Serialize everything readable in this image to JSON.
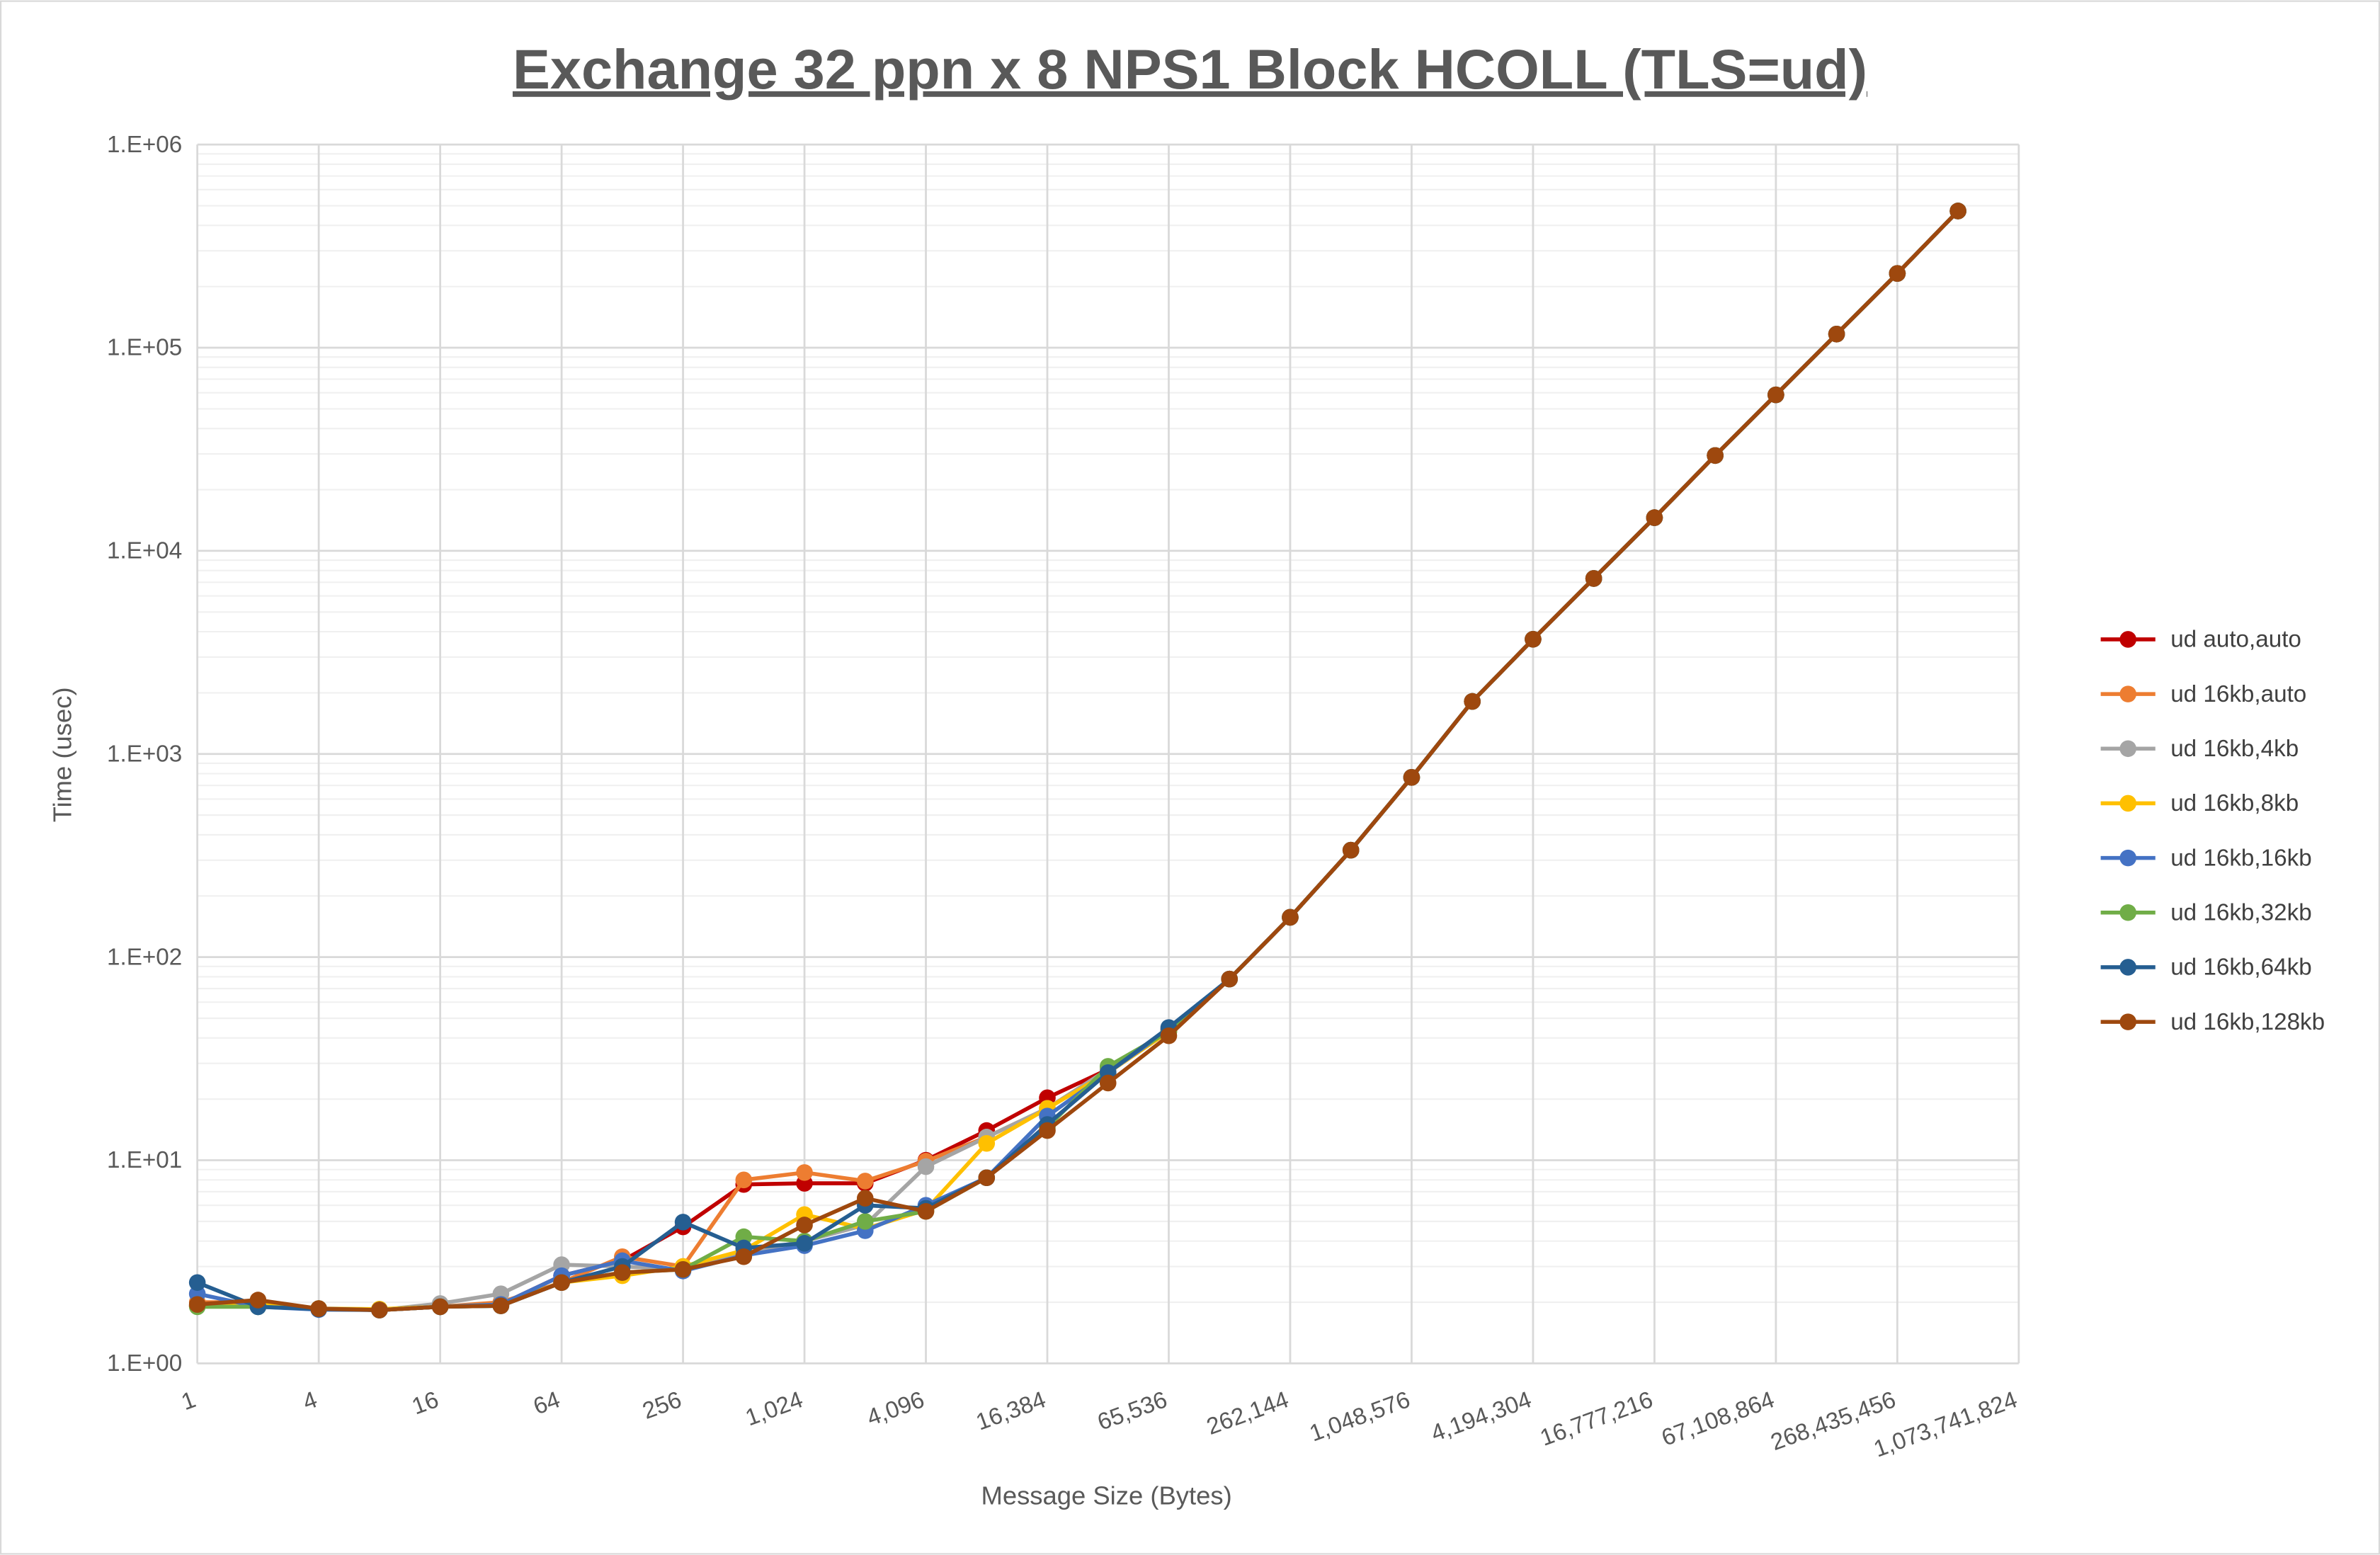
{
  "chart_data": {
    "type": "line",
    "title": "Exchange 32 ppn x 8 NPS1 Block HCOLL (TLS=ud)",
    "xlabel": "Message Size (Bytes)",
    "ylabel": "Time (usec)",
    "x_scale": "log2",
    "y_scale": "log10",
    "ylim": [
      1,
      1000000
    ],
    "grid": true,
    "legend": "right",
    "x_tick_labels": [
      "1",
      "4",
      "16",
      "64",
      "256",
      "1,024",
      "4,096",
      "16,384",
      "65,536",
      "262,144",
      "1,048,576",
      "4,194,304",
      "16,777,216",
      "67,108,864",
      "268,435,456",
      "1,073,741,824"
    ],
    "y_tick_labels": [
      "1.E+00",
      "1.E+01",
      "1.E+02",
      "1.E+03",
      "1.E+04",
      "1.E+05",
      "1.E+06"
    ],
    "x": [
      1,
      2,
      4,
      8,
      16,
      32,
      64,
      128,
      256,
      512,
      1024,
      2048,
      4096,
      8192,
      16384,
      32768,
      65536,
      131072,
      262144,
      524288,
      1048576,
      2097152,
      4194304,
      8388608,
      16777216,
      33554432,
      67108864,
      134217728,
      268435456,
      536870912
    ],
    "series": [
      {
        "name": "ud auto,auto",
        "color": "#C00000",
        "values": [
          1.92,
          1.92,
          1.86,
          1.83,
          1.9,
          1.95,
          2.7,
          3.2,
          4.7,
          7.6,
          7.7,
          7.7,
          10.0,
          14.0,
          20.3,
          28,
          44,
          78,
          157,
          336,
          767,
          1814,
          3670,
          7310,
          14560,
          29460,
          58600,
          116700,
          232000,
          471000
        ]
      },
      {
        "name": "ud 16kb,auto",
        "color": "#ED7D31",
        "values": [
          2.0,
          2.0,
          1.86,
          1.83,
          1.9,
          2.0,
          2.5,
          3.35,
          3.0,
          8.0,
          8.7,
          7.9,
          9.9,
          13.0,
          18,
          28,
          43,
          78,
          157,
          336,
          767,
          1814,
          3670,
          7310,
          14560,
          29460,
          58600,
          116700,
          232000,
          471000
        ]
      },
      {
        "name": "ud 16kb,4kb",
        "color": "#A5A5A5",
        "values": [
          1.92,
          1.95,
          1.86,
          1.83,
          1.97,
          2.2,
          3.06,
          3.0,
          2.9,
          3.5,
          4.0,
          4.8,
          9.3,
          13.0,
          18,
          28,
          43,
          78,
          157,
          336,
          767,
          1814,
          3670,
          7310,
          14560,
          29460,
          58600,
          116700,
          232000,
          471000
        ]
      },
      {
        "name": "ud 16kb,8kb",
        "color": "#FFC000",
        "values": [
          1.92,
          1.95,
          1.86,
          1.85,
          1.9,
          1.95,
          2.5,
          2.7,
          3.0,
          3.6,
          5.4,
          4.6,
          5.7,
          12.1,
          18,
          27,
          43,
          78,
          157,
          336,
          767,
          1814,
          3670,
          7310,
          14560,
          29460,
          58600,
          116700,
          232000,
          471000
        ]
      },
      {
        "name": "ud 16kb,16kb",
        "color": "#4472C4",
        "values": [
          2.2,
          1.9,
          1.84,
          1.83,
          1.9,
          1.95,
          2.7,
          3.2,
          2.85,
          3.4,
          3.8,
          4.5,
          6.0,
          8.2,
          16.5,
          27,
          44,
          78,
          157,
          336,
          767,
          1814,
          3670,
          7310,
          14560,
          29460,
          58600,
          116700,
          232000,
          471000
        ]
      },
      {
        "name": "ud 16kb,32kb",
        "color": "#70AD47",
        "values": [
          1.9,
          1.9,
          1.86,
          1.83,
          1.9,
          1.92,
          2.5,
          2.8,
          2.9,
          4.2,
          4.0,
          5.0,
          5.6,
          8.2,
          14.5,
          29,
          43,
          78,
          157,
          336,
          767,
          1814,
          3670,
          7310,
          14560,
          29460,
          58600,
          116700,
          232000,
          471000
        ]
      },
      {
        "name": "ud 16kb,64kb",
        "color": "#255E91",
        "values": [
          2.5,
          1.9,
          1.85,
          1.83,
          1.9,
          1.92,
          2.5,
          3.0,
          4.96,
          3.7,
          3.9,
          6.0,
          5.8,
          8.2,
          15,
          27,
          45,
          78,
          157,
          336,
          767,
          1814,
          3670,
          7310,
          14560,
          29460,
          58600,
          116700,
          232000,
          471000
        ]
      },
      {
        "name": "ud 16kb,128kb",
        "color": "#9E480E",
        "values": [
          1.95,
          2.05,
          1.86,
          1.83,
          1.9,
          1.92,
          2.5,
          2.8,
          2.9,
          3.35,
          4.8,
          6.5,
          5.6,
          8.2,
          14.0,
          24,
          41,
          78,
          157,
          336,
          767,
          1814,
          3670,
          7310,
          14560,
          29460,
          58600,
          116700,
          232000,
          471000
        ]
      }
    ]
  }
}
